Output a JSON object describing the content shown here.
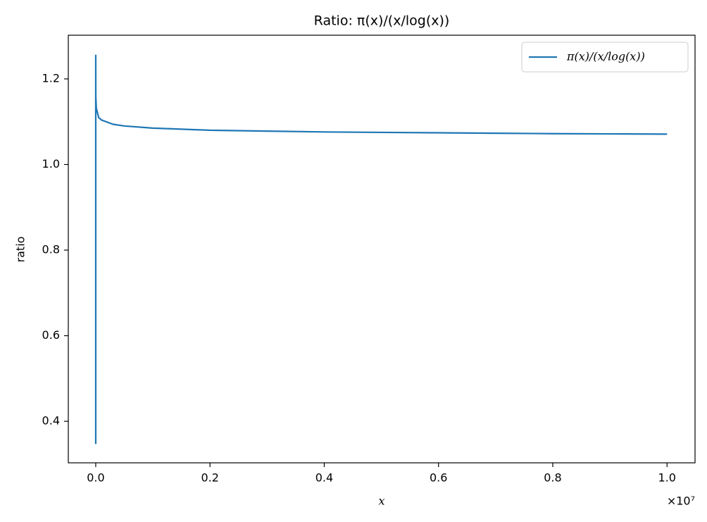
{
  "chart_data": {
    "type": "line",
    "title": "Ratio: π(x)/(x/log(x))",
    "x_label": "x",
    "y_label": "ratio",
    "x_offset_label": "×10⁷",
    "x": [
      2,
      3,
      5,
      7,
      13,
      19,
      31,
      113,
      1000,
      10000,
      50000,
      100000,
      300000,
      500000,
      1000000,
      2000000,
      3000000,
      4000000,
      5000000,
      6000000,
      7000000,
      8000000,
      9000000,
      10000000
    ],
    "series": [
      {
        "name": "π(x)/(x/log(x))",
        "color": "#1f77b4",
        "values": [
          0.347,
          0.732,
          0.966,
          1.112,
          1.184,
          1.24,
          1.22,
          1.255,
          1.16,
          1.132,
          1.11,
          1.104,
          1.094,
          1.09,
          1.085,
          1.08,
          1.078,
          1.076,
          1.075,
          1.074,
          1.073,
          1.072,
          1.0715,
          1.071
        ]
      }
    ],
    "xlim": [
      -480000,
      10490000
    ],
    "xticks": [
      {
        "value": 0,
        "label": "0.0"
      },
      {
        "value": 2000000,
        "label": "0.2"
      },
      {
        "value": 4000000,
        "label": "0.4"
      },
      {
        "value": 6000000,
        "label": "0.6"
      },
      {
        "value": 8000000,
        "label": "0.8"
      },
      {
        "value": 10000000,
        "label": "1.0"
      }
    ],
    "ylim": [
      0.303,
      1.302
    ],
    "yticks": [
      0.4,
      0.6,
      0.8,
      {
        "value": 1,
        "label": "1.0"
      },
      1.2
    ],
    "grid": false,
    "legend": "upper right"
  }
}
